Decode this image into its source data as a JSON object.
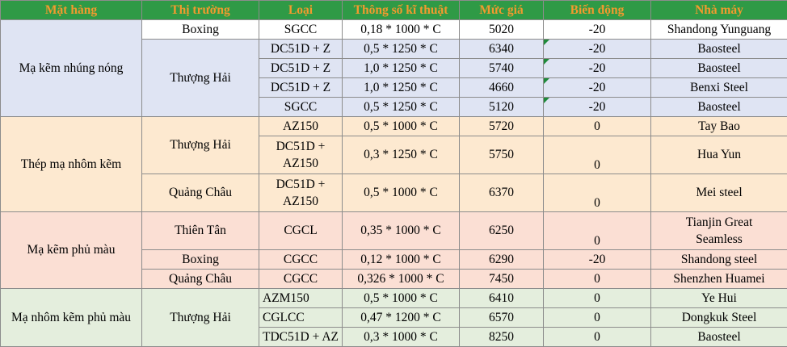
{
  "headers": [
    "Mặt hàng",
    "Thị trường",
    "Loại",
    "Thông số kĩ thuật",
    "Mức giá",
    "Biến động",
    "Nhà máy"
  ],
  "groups": [
    {
      "name": "Mạ kẽm nhúng nóng",
      "rows": [
        {
          "market": "Boxing",
          "type": "SGCC",
          "spec": "0,18 * 1000 * C",
          "price": "5020",
          "change": "-20",
          "factory": "Shandong Yunguang"
        },
        {
          "market": "Thượng Hải",
          "type": "DC51D + Z",
          "spec": "0,5 * 1250 * C",
          "price": "6340",
          "change": "-20",
          "factory": "Baosteel"
        },
        {
          "type": "DC51D + Z",
          "spec": "1,0 * 1250 * C",
          "price": "5740",
          "change": "-20",
          "factory": "Baosteel"
        },
        {
          "type": "DC51D + Z",
          "spec": "1,0 * 1250 * C",
          "price": "4660",
          "change": "-20",
          "factory": "Benxi Steel"
        },
        {
          "type": "SGCC",
          "spec": "0,5 * 1250 * C",
          "price": "5120",
          "change": "-20",
          "factory": "Baosteel"
        }
      ]
    },
    {
      "name": "Thép mạ nhôm kẽm",
      "rows": [
        {
          "market": "Thượng Hải",
          "type": "AZ150",
          "spec": "0,5 * 1000 * C",
          "price": "5720",
          "change": "0",
          "factory": "Tay Bao"
        },
        {
          "type_line1": "DC51D +",
          "type_line2": "AZ150",
          "spec": "0,3 * 1250 * C",
          "price": "5750",
          "change": "0",
          "factory": "Hua Yun"
        },
        {
          "market": "Quảng Châu",
          "type_line1": "DC51D +",
          "type_line2": "AZ150",
          "spec": "0,5 * 1000 * C",
          "price": "6370",
          "change": "0",
          "factory": "Mei steel"
        }
      ]
    },
    {
      "name": "Mạ kẽm phủ màu",
      "rows": [
        {
          "market": "Thiên Tân",
          "type": "CGCL",
          "spec": "0,35 * 1000 * C",
          "price": "6250",
          "change": "0",
          "factory_line1": "Tianjin Great",
          "factory_line2": "Seamless"
        },
        {
          "market": "Boxing",
          "type": "CGCC",
          "spec": "0,12 * 1000 * C",
          "price": "6290",
          "change": "-20",
          "factory": "Shandong steel"
        },
        {
          "market": "Quảng Châu",
          "type": "CGCC",
          "spec": "0,326 * 1000 * C",
          "price": "7450",
          "change": "0",
          "factory": "Shenzhen Huamei"
        }
      ]
    },
    {
      "name": "Mạ nhôm kẽm phủ màu",
      "rows": [
        {
          "market": "Thượng Hải",
          "type": "AZM150",
          "spec": "0,5 * 1000 * C",
          "price": "6410",
          "change": "0",
          "factory": "Ye Hui"
        },
        {
          "type": "CGLCC",
          "spec": "0,47 * 1200 * C",
          "price": "6570",
          "change": "0",
          "factory": "Dongkuk Steel"
        },
        {
          "type": "TDC51D + AZ",
          "spec": "0,3 * 1000 * C",
          "price": "8250",
          "change": "0",
          "factory": "Baosteel"
        }
      ]
    }
  ],
  "colors": {
    "header_bg": "#2f9a46",
    "header_text": "#f29a2e",
    "group1": "#dfe4f3",
    "group2": "#fde9d0",
    "group3": "#fbdfd4",
    "group4": "#e4eedd"
  }
}
